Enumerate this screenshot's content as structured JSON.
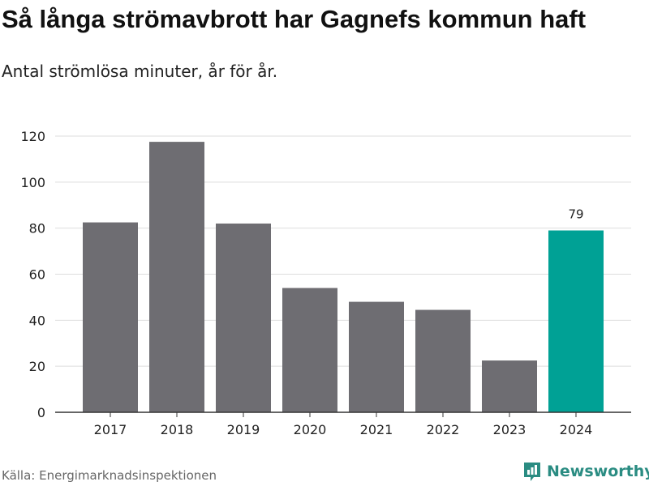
{
  "header": {
    "title": "Så långa strömavbrott har Gagnefs kommun haft",
    "subtitle": "Antal strömlösa minuter, år för år."
  },
  "footer": {
    "source": "Källa: Energimarknadsinspektionen",
    "brand": "Newsworthy"
  },
  "colors": {
    "bar_default": "#6e6d72",
    "bar_highlight": "#00a195",
    "grid": "#dddddd",
    "axis": "#333333",
    "brand": "#2a8c82"
  },
  "chart_data": {
    "type": "bar",
    "title": "Så långa strömavbrott har Gagnefs kommun haft",
    "subtitle": "Antal strömlösa minuter, år för år.",
    "xlabel": "",
    "ylabel": "",
    "categories": [
      "2017",
      "2018",
      "2019",
      "2020",
      "2021",
      "2022",
      "2023",
      "2024"
    ],
    "values": [
      82.5,
      117.5,
      82,
      54,
      48,
      44.5,
      22.5,
      79
    ],
    "highlight_index": 7,
    "data_labels": [
      null,
      null,
      null,
      null,
      null,
      null,
      null,
      "79"
    ],
    "ylim": [
      0,
      120
    ],
    "yticks": [
      "0",
      "20",
      "40",
      "60",
      "80",
      "100",
      "120"
    ],
    "grid": true
  }
}
